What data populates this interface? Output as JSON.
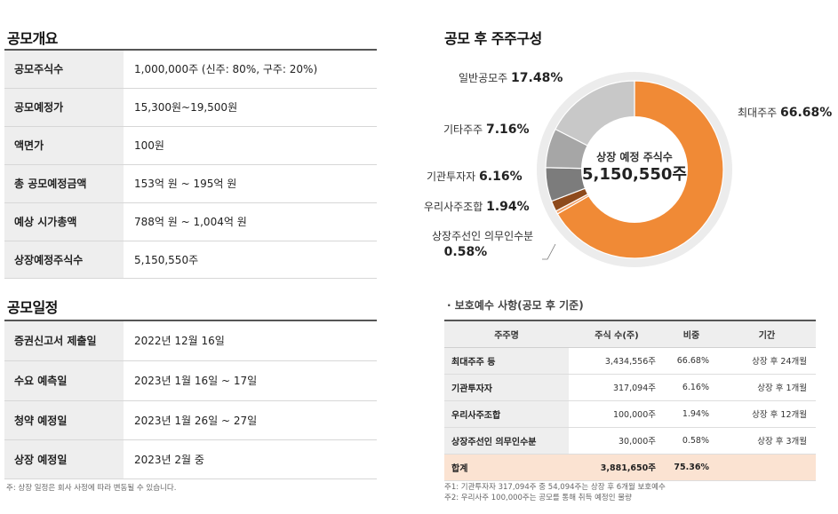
{
  "overview": {
    "title": "공모개요",
    "rows": [
      {
        "label": "공모주식수",
        "value": "1,000,000주 (신주: 80%, 구주: 20%)"
      },
      {
        "label": "공모예정가",
        "value": "15,300원~19,500원"
      },
      {
        "label": "액면가",
        "value": "100원"
      },
      {
        "label": "총 공모예정금액",
        "value": "153억 원 ~ 195억 원"
      },
      {
        "label": "예상 시가총액",
        "value": "788억 원 ~ 1,004억 원"
      },
      {
        "label": "상장예정주식수",
        "value": "5,150,550주"
      }
    ]
  },
  "schedule": {
    "title": "공모일정",
    "rows": [
      {
        "label": "증권신고서 제출일",
        "value": "2022년 12월 16일"
      },
      {
        "label": "수요 예측일",
        "value": "2023년 1월 16일 ~ 17일"
      },
      {
        "label": "청약 예정일",
        "value": "2023년 1월 26일 ~ 27일"
      },
      {
        "label": "상장 예정일",
        "value": "2023년 2월 중"
      }
    ],
    "note": "주: 상장 일정은 회사 사정에 따라 변동될 수 있습니다."
  },
  "shareholders": {
    "title": "공모 후 주주구성",
    "center_label": "상장 예정 주식수",
    "center_value": "5,150,550주"
  },
  "chart_data": {
    "type": "pie",
    "title": "공모 후 주주구성",
    "labels": [
      "최대주주",
      "상장주선인 의무인수분",
      "우리사주조합",
      "기관투자자",
      "기타주주",
      "일반공모주"
    ],
    "values": [
      66.68,
      0.58,
      1.94,
      6.16,
      7.16,
      17.48
    ],
    "value_labels": [
      "66.68%",
      "0.58%",
      "1.94%",
      "6.16%",
      "7.16%",
      "17.48%"
    ],
    "colors": [
      "#f08a36",
      "#f0a068",
      "#8e4a1c",
      "#7c7c7c",
      "#a6a6a6",
      "#c8c8c8"
    ],
    "donut": true
  },
  "lockup": {
    "title": "· 보호예수 사항(공모 후 기준)",
    "headers": [
      "주주명",
      "주식 수(주)",
      "비중",
      "기간"
    ],
    "rows": [
      {
        "name": "최대주주 등",
        "shares": "3,434,556주",
        "ratio": "66.68%",
        "period": "상장 후 24개월"
      },
      {
        "name": "기관투자자",
        "shares": "317,094주",
        "ratio": "6.16%",
        "period": "상장 후 1개월"
      },
      {
        "name": "우리사주조합",
        "shares": "100,000주",
        "ratio": "1.94%",
        "period": "상장 후 12개월"
      },
      {
        "name": "상장주선인 의무인수분",
        "shares": "30,000주",
        "ratio": "0.58%",
        "period": "상장 후 3개월"
      }
    ],
    "total": {
      "name": "합계",
      "shares": "3,881,650주",
      "ratio": "75.36%",
      "period": ""
    },
    "notes": [
      "주1: 기관투자자 317,094주 중 54,094주는 상장 후 6개월 보호예수",
      "주2: 우리사주 100,000주는 공모를 통해 취득 예정인 물량"
    ]
  }
}
